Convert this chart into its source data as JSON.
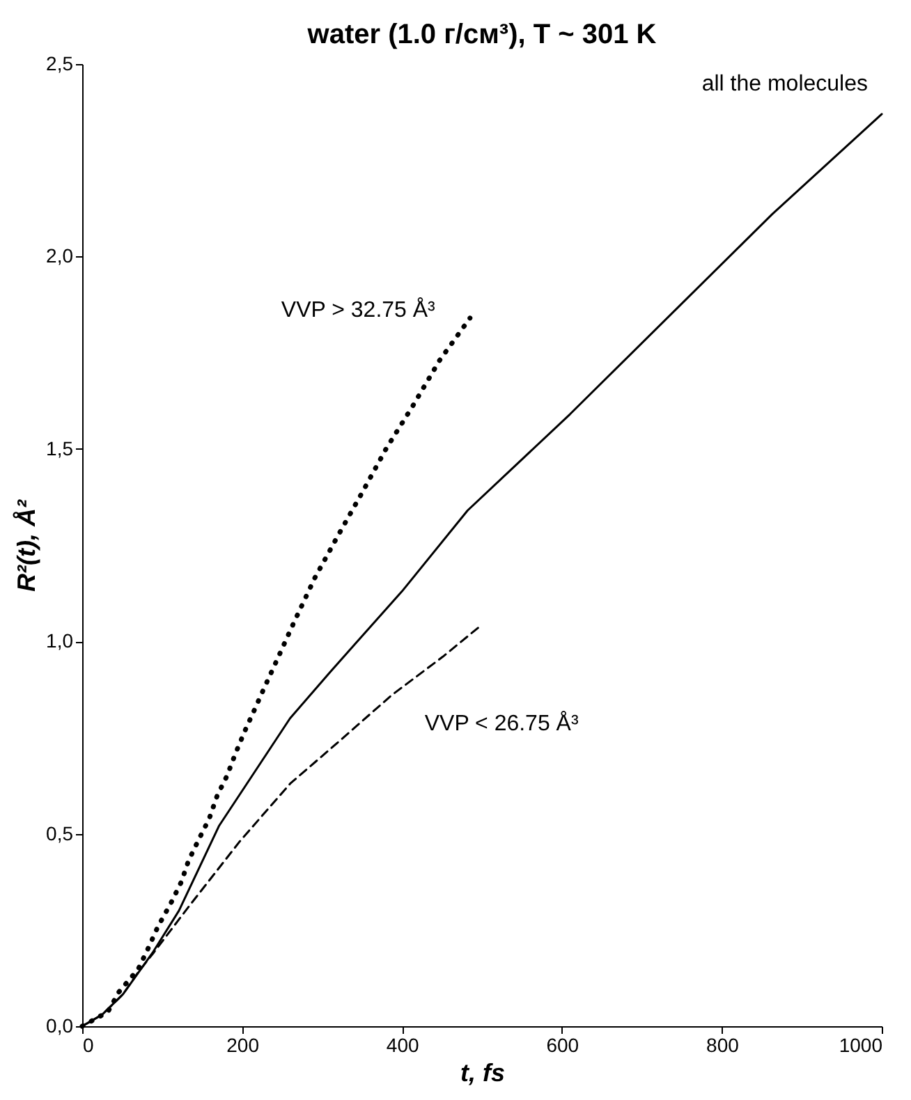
{
  "chart_data": {
    "type": "line",
    "title": "water  (1.0 г/см³),   T ~ 301 K",
    "xlabel": "t, fs",
    "ylabel": "R²(t),  Å²",
    "xlim": [
      0,
      1000
    ],
    "xticks": [
      0,
      200,
      400,
      600,
      800,
      1000
    ],
    "ylim": [
      0,
      2.5
    ],
    "yticks": [
      {
        "value": 0,
        "label": "0,0"
      },
      {
        "value": 0.5,
        "label": "0,5"
      },
      {
        "value": 1.0,
        "label": "1,0"
      },
      {
        "value": 1.5,
        "label": "1,5"
      },
      {
        "value": 2.0,
        "label": "2,0"
      },
      {
        "value": 2.5,
        "label": "2,5"
      }
    ],
    "grid": false,
    "marker": "none",
    "series": [
      {
        "name": "all the molecules",
        "color": "#000000",
        "line_style": "solid",
        "x": [
          0,
          25,
          51,
          89,
          121,
          171,
          260,
          310,
          400,
          482,
          610,
          863,
          1000
        ],
        "values": [
          0,
          0.03,
          0.083,
          0.194,
          0.3,
          0.52,
          0.8,
          0.92,
          1.13,
          1.34,
          1.59,
          2.11,
          2.37
        ]
      },
      {
        "name": "VVP > 32.75 Å³",
        "color": "#000000",
        "line_style": "dotted",
        "x": [
          0,
          32,
          46,
          70,
          82,
          95,
          111,
          124,
          133,
          146,
          159,
          169,
          181,
          192,
          203,
          215,
          227,
          240,
          265,
          291,
          320,
          350,
          380,
          413,
          447,
          485
        ],
        "values": [
          0,
          0.037,
          0.089,
          0.148,
          0.2,
          0.26,
          0.32,
          0.375,
          0.43,
          0.486,
          0.54,
          0.6,
          0.65,
          0.71,
          0.765,
          0.82,
          0.876,
          0.935,
          1.05,
          1.165,
          1.275,
          1.386,
          1.5,
          1.61,
          1.73,
          1.84
        ]
      },
      {
        "name": "VVP < 26.75 Å³",
        "color": "#000000",
        "line_style": "dashed",
        "x": [
          0,
          25,
          51,
          70,
          89,
          133,
          197,
          260,
          324,
          387,
          451,
          498
        ],
        "values": [
          0,
          0.03,
          0.083,
          0.14,
          0.19,
          0.31,
          0.48,
          0.63,
          0.745,
          0.86,
          0.96,
          1.04
        ]
      }
    ]
  }
}
